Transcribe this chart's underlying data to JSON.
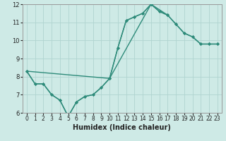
{
  "series": [
    {
      "x": [
        0,
        1,
        2,
        3,
        4,
        5,
        6,
        7,
        8,
        9,
        10,
        11,
        12,
        13,
        14,
        15,
        16,
        17,
        18,
        19,
        20,
        21,
        22,
        23
      ],
      "y": [
        8.3,
        7.6,
        7.6,
        7.0,
        6.7,
        5.8,
        6.6,
        6.9,
        7.0,
        7.4,
        7.9,
        9.6,
        11.1,
        11.3,
        11.5,
        12.0,
        11.6,
        11.4,
        10.9,
        10.4,
        10.2,
        9.8,
        9.8,
        9.8
      ]
    },
    {
      "x": [
        0,
        1,
        2,
        3,
        4,
        5,
        6,
        7,
        8,
        9,
        10,
        11,
        12,
        13,
        14,
        15,
        16,
        17
      ],
      "y": [
        8.3,
        7.6,
        7.6,
        7.0,
        6.7,
        5.8,
        6.6,
        6.9,
        7.0,
        7.4,
        7.9,
        9.6,
        11.1,
        11.3,
        11.5,
        12.0,
        11.6,
        11.4
      ]
    },
    {
      "x": [
        0,
        10,
        15,
        17,
        18,
        19,
        20,
        21,
        22,
        23
      ],
      "y": [
        8.3,
        7.9,
        12.0,
        11.4,
        10.9,
        10.4,
        10.2,
        9.8,
        9.8,
        9.8
      ]
    }
  ],
  "color": "#2e8b7a",
  "bgcolor": "#ceeae6",
  "grid_color": "#b0d4d0",
  "xlabel": "Humidex (Indice chaleur)",
  "xlim": [
    -0.5,
    23.5
  ],
  "ylim": [
    6,
    12
  ],
  "xticks": [
    0,
    1,
    2,
    3,
    4,
    5,
    6,
    7,
    8,
    9,
    10,
    11,
    12,
    13,
    14,
    15,
    16,
    17,
    18,
    19,
    20,
    21,
    22,
    23
  ],
  "yticks": [
    6,
    7,
    8,
    9,
    10,
    11,
    12
  ],
  "xlabel_fontsize": 7,
  "tick_fontsize": 5.5,
  "linewidth": 1.0,
  "markersize": 2.5
}
